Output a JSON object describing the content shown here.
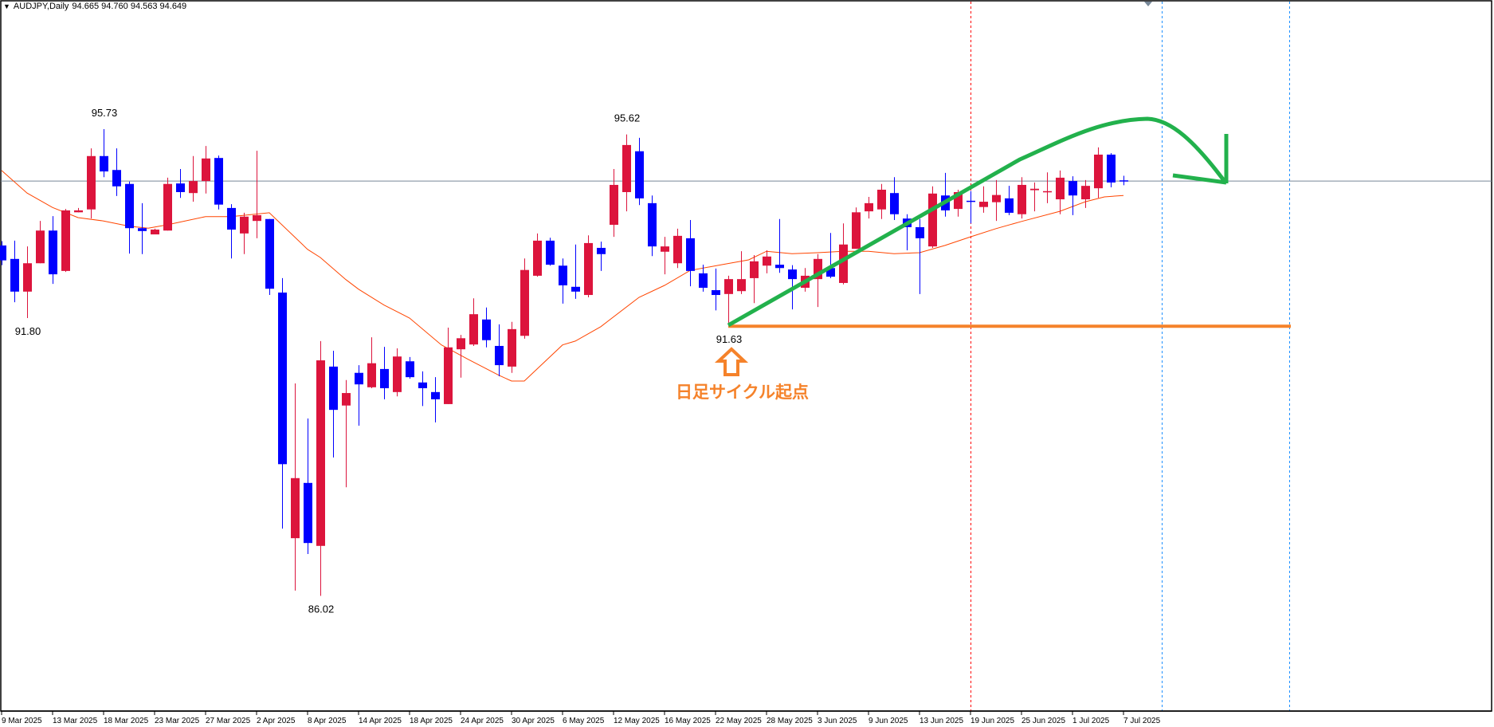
{
  "header": {
    "symbol_timeframe": "AUDJPY,Daily",
    "ohlc": "94.665 94.760 94.563 94.649",
    "menu_icon": "triangle-down-icon"
  },
  "colors": {
    "bull": "#DC143C",
    "bear": "#0000FF",
    "ma": "#FF4500",
    "price_line": "#778899",
    "annotation_green": "#22B14C",
    "annotation_orange": "#F5822A",
    "period_separator_red": "#FF0000",
    "period_separator_blue": "#1E90FF"
  },
  "annotation": {
    "label": "日足サイクル起点",
    "support_level": 91.63,
    "arrow_icon": "up-arrow-outline-icon"
  },
  "chart_data": {
    "type": "candlestick",
    "title": "AUDJPY,Daily",
    "last_price": 94.649,
    "grid": false,
    "x_tick_every_bars": 4,
    "x_tick_labels": [
      "9 Mar 2025",
      "13 Mar 2025",
      "18 Mar 2025",
      "23 Mar 2025",
      "27 Mar 2025",
      "2 Apr 2025",
      "8 Apr 2025",
      "14 Apr 2025",
      "18 Apr 2025",
      "24 Apr 2025",
      "30 Apr 2025",
      "6 May 2025",
      "12 May 2025",
      "16 May 2025",
      "22 May 2025",
      "28 May 2025",
      "3 Jun 2025",
      "9 Jun 2025",
      "13 Jun 2025",
      "19 Jun 2025",
      "25 Jun 2025",
      "1 Jul 2025",
      "7 Jul 2025"
    ],
    "candles_ohlc": [
      [
        93.31,
        93.4,
        92.9,
        93.0
      ],
      [
        93.03,
        93.41,
        92.13,
        92.35
      ],
      [
        92.35,
        93.29,
        91.8,
        92.94
      ],
      [
        92.94,
        93.82,
        92.94,
        93.62
      ],
      [
        93.62,
        93.92,
        92.51,
        92.71
      ],
      [
        92.78,
        94.07,
        92.76,
        94.04
      ],
      [
        94.0,
        94.09,
        94.0,
        94.04
      ],
      [
        94.06,
        95.33,
        93.87,
        95.17
      ],
      [
        95.17,
        95.73,
        94.73,
        94.85
      ],
      [
        94.88,
        95.33,
        94.34,
        94.54
      ],
      [
        94.59,
        94.64,
        93.14,
        93.67
      ],
      [
        93.67,
        94.19,
        93.13,
        93.61
      ],
      [
        93.54,
        93.66,
        93.54,
        93.64
      ],
      [
        93.62,
        94.72,
        93.62,
        94.59
      ],
      [
        94.6,
        94.9,
        94.3,
        94.42
      ],
      [
        94.4,
        95.17,
        94.22,
        94.65
      ],
      [
        94.65,
        95.38,
        94.39,
        95.12
      ],
      [
        95.13,
        95.18,
        94.06,
        94.16
      ],
      [
        94.09,
        94.17,
        93.04,
        93.64
      ],
      [
        93.56,
        93.99,
        93.13,
        93.91
      ],
      [
        93.82,
        95.28,
        93.46,
        93.94
      ],
      [
        93.86,
        93.86,
        92.28,
        92.41
      ],
      [
        92.33,
        92.63,
        87.42,
        88.76
      ],
      [
        87.22,
        90.44,
        86.13,
        88.47
      ],
      [
        88.37,
        89.71,
        86.89,
        87.12
      ],
      [
        87.06,
        91.32,
        86.02,
        90.92
      ],
      [
        90.79,
        91.12,
        88.9,
        89.89
      ],
      [
        89.98,
        90.51,
        88.28,
        90.24
      ],
      [
        90.66,
        90.82,
        89.56,
        90.42
      ],
      [
        90.36,
        91.4,
        90.34,
        90.86
      ],
      [
        90.74,
        91.2,
        90.11,
        90.34
      ],
      [
        90.26,
        91.17,
        90.17,
        91.0
      ],
      [
        90.9,
        90.99,
        90.54,
        90.57
      ],
      [
        90.46,
        90.69,
        89.97,
        90.34
      ],
      [
        90.26,
        90.57,
        89.63,
        90.11
      ],
      [
        90.01,
        91.6,
        90.01,
        91.19
      ],
      [
        91.15,
        91.45,
        90.56,
        91.38
      ],
      [
        91.25,
        92.21,
        91.22,
        91.88
      ],
      [
        91.77,
        92.02,
        91.19,
        91.34
      ],
      [
        91.22,
        91.67,
        90.59,
        90.82
      ],
      [
        90.79,
        91.72,
        90.66,
        91.57
      ],
      [
        91.43,
        93.04,
        91.37,
        92.8
      ],
      [
        92.68,
        93.56,
        92.66,
        93.41
      ],
      [
        93.41,
        93.47,
        92.89,
        92.91
      ],
      [
        92.89,
        93.04,
        92.1,
        92.48
      ],
      [
        92.45,
        93.33,
        92.2,
        92.35
      ],
      [
        92.28,
        93.52,
        92.23,
        93.36
      ],
      [
        93.26,
        93.39,
        92.78,
        93.13
      ],
      [
        93.74,
        94.9,
        93.49,
        94.57
      ],
      [
        94.42,
        95.62,
        94.02,
        95.4
      ],
      [
        95.27,
        95.55,
        94.15,
        94.29
      ],
      [
        94.19,
        94.35,
        93.09,
        93.29
      ],
      [
        93.18,
        93.49,
        92.71,
        93.29
      ],
      [
        92.94,
        93.66,
        92.84,
        93.51
      ],
      [
        93.46,
        93.84,
        92.46,
        92.78
      ],
      [
        92.73,
        92.91,
        92.35,
        92.43
      ],
      [
        92.38,
        92.83,
        91.96,
        92.28
      ],
      [
        92.3,
        92.68,
        91.63,
        92.61
      ],
      [
        92.36,
        93.19,
        92.3,
        92.61
      ],
      [
        92.63,
        93.11,
        92.11,
        92.98
      ],
      [
        92.89,
        93.21,
        92.73,
        93.08
      ],
      [
        92.91,
        93.86,
        92.74,
        92.84
      ],
      [
        92.81,
        92.9,
        91.98,
        92.61
      ],
      [
        92.43,
        92.84,
        92.35,
        92.68
      ],
      [
        92.61,
        93.13,
        92.03,
        93.03
      ],
      [
        92.84,
        93.57,
        92.63,
        92.66
      ],
      [
        92.53,
        93.77,
        92.5,
        93.33
      ],
      [
        93.24,
        94.1,
        93.24,
        94.0
      ],
      [
        94.02,
        94.32,
        93.87,
        94.19
      ],
      [
        94.06,
        94.59,
        93.86,
        94.47
      ],
      [
        94.4,
        94.73,
        93.84,
        93.96
      ],
      [
        93.87,
        93.96,
        93.21,
        93.69
      ],
      [
        93.69,
        93.86,
        92.3,
        93.46
      ],
      [
        93.29,
        94.54,
        93.26,
        94.39
      ],
      [
        94.35,
        94.82,
        93.91,
        94.04
      ],
      [
        94.07,
        94.47,
        93.91,
        94.42
      ],
      [
        94.24,
        94.44,
        93.77,
        94.22
      ],
      [
        94.11,
        94.54,
        93.99,
        94.22
      ],
      [
        94.21,
        94.67,
        93.82,
        94.36
      ],
      [
        94.29,
        94.55,
        93.94,
        93.99
      ],
      [
        93.96,
        94.73,
        93.87,
        94.57
      ],
      [
        94.46,
        94.62,
        94.02,
        94.49
      ],
      [
        94.43,
        94.83,
        94.19,
        94.44
      ],
      [
        94.27,
        94.87,
        93.96,
        94.72
      ],
      [
        94.65,
        94.75,
        93.94,
        94.35
      ],
      [
        94.27,
        94.67,
        94.09,
        94.55
      ],
      [
        94.5,
        95.35,
        94.3,
        95.2
      ],
      [
        95.2,
        95.23,
        94.52,
        94.62
      ],
      [
        94.665,
        94.76,
        94.563,
        94.649
      ]
    ],
    "moving_average": [
      [
        0,
        94.87
      ],
      [
        2,
        94.4
      ],
      [
        4,
        94.1
      ],
      [
        6,
        93.89
      ],
      [
        8,
        93.82
      ],
      [
        10,
        93.71
      ],
      [
        11.5,
        93.67
      ],
      [
        13,
        93.74
      ],
      [
        16,
        93.91
      ],
      [
        18,
        93.91
      ],
      [
        21,
        93.99
      ],
      [
        24,
        93.23
      ],
      [
        25,
        93.06
      ],
      [
        27,
        92.6
      ],
      [
        28,
        92.4
      ],
      [
        30,
        92.07
      ],
      [
        32,
        91.8
      ],
      [
        34.5,
        91.24
      ],
      [
        36.6,
        90.94
      ],
      [
        39,
        90.61
      ],
      [
        40,
        90.49
      ],
      [
        41,
        90.49
      ],
      [
        44,
        91.24
      ],
      [
        45,
        91.32
      ],
      [
        47,
        91.62
      ],
      [
        50,
        92.23
      ],
      [
        52,
        92.48
      ],
      [
        54,
        92.79
      ],
      [
        56.5,
        92.91
      ],
      [
        58.6,
        93.01
      ],
      [
        60,
        93.19
      ],
      [
        62,
        93.14
      ],
      [
        64,
        93.16
      ],
      [
        66,
        93.19
      ],
      [
        68,
        93.19
      ],
      [
        70,
        93.14
      ],
      [
        72,
        93.16
      ],
      [
        74,
        93.31
      ],
      [
        76,
        93.49
      ],
      [
        78,
        93.66
      ],
      [
        80,
        93.81
      ],
      [
        83,
        94.02
      ],
      [
        85,
        94.22
      ],
      [
        86.5,
        94.32
      ],
      [
        88,
        94.35
      ]
    ],
    "price_labels": [
      {
        "text": "95.73",
        "bar": 8,
        "price": 95.73,
        "side": "above"
      },
      {
        "text": "91.80",
        "bar": 2,
        "price": 91.8,
        "side": "below"
      },
      {
        "text": "95.62",
        "bar": 49,
        "price": 95.62,
        "side": "above"
      },
      {
        "text": "86.02",
        "bar": 25,
        "price": 86.02,
        "side": "below"
      },
      {
        "text": "91.63",
        "bar": 57,
        "price": 91.63,
        "side": "below"
      }
    ],
    "vertical_separators": [
      {
        "bar": 76,
        "color": "red"
      },
      {
        "bar": 91,
        "color": "blue"
      },
      {
        "bar": 101,
        "color": "blue"
      }
    ]
  }
}
